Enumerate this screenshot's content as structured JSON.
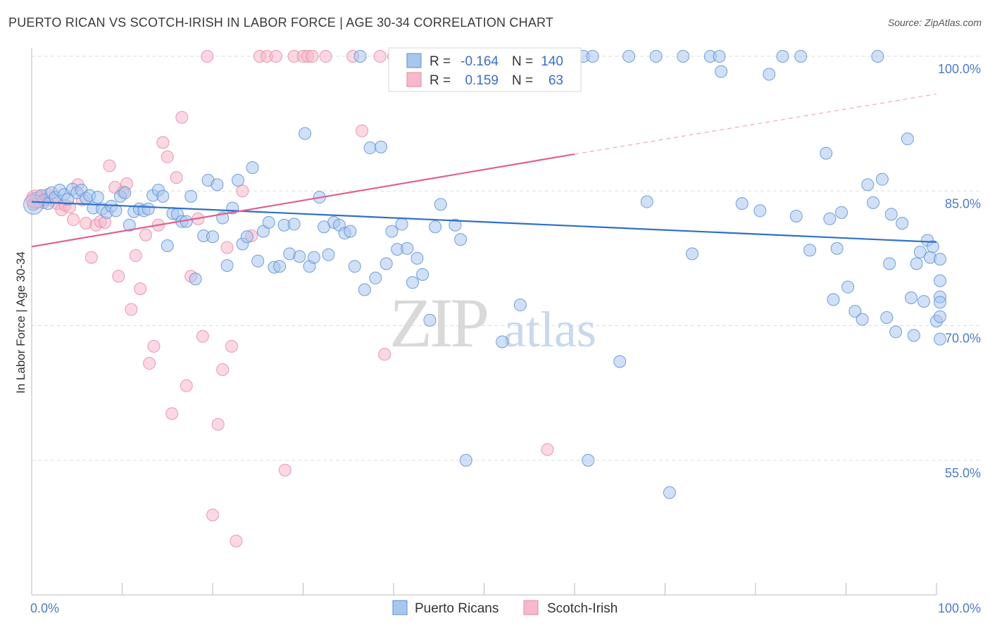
{
  "header": {
    "title": "PUERTO RICAN VS SCOTCH-IRISH IN LABOR FORCE | AGE 30-34 CORRELATION CHART",
    "source": "Source: ZipAtlas.com"
  },
  "watermark": {
    "zip": "ZIP",
    "atlas": "atlas"
  },
  "colors": {
    "blue_fill": "#a9c6ee",
    "blue_stroke": "#5b8fd6",
    "blue_line": "#2f6fca",
    "pink_fill": "#f7b8cb",
    "pink_stroke": "#e48aa6",
    "pink_line": "#e06090",
    "tick_text": "#4a7cc7",
    "grid": "#dddddd"
  },
  "legend_top": {
    "rows": [
      {
        "r_label": "R =",
        "r_value": "-0.164",
        "n_label": "N =",
        "n_value": "140"
      },
      {
        "r_label": "R =",
        "r_value": "0.159",
        "n_label": "N =",
        "n_value": "63"
      }
    ]
  },
  "chart_data": {
    "type": "scatter",
    "title": "PUERTO RICAN VS SCOTCH-IRISH IN LABOR FORCE | AGE 30-34 CORRELATION CHART",
    "xlabel": "",
    "ylabel": "In Labor Force | Age 30-34",
    "xlim": [
      0,
      100
    ],
    "ylim": [
      40,
      101.5
    ],
    "x_tick_labels": [
      "0.0%",
      "100.0%"
    ],
    "y_ticks": [
      55,
      70,
      85,
      100
    ],
    "y_tick_labels": [
      "55.0%",
      "70.0%",
      "85.0%",
      "100.0%"
    ],
    "grid": true,
    "legend_position": "bottom-center",
    "series": [
      {
        "name": "Puerto Ricans",
        "color": "#5b8fd6",
        "r": -0.164,
        "n": 140,
        "trend": {
          "x": [
            0,
            100
          ],
          "y": [
            83.8,
            79.3
          ]
        },
        "points": [
          [
            0.2,
            83.5
          ],
          [
            0.5,
            84.2
          ],
          [
            0.8,
            83.8
          ],
          [
            1.1,
            84.5
          ],
          [
            1.4,
            84.0
          ],
          [
            1.8,
            83.6
          ],
          [
            2.2,
            84.8
          ],
          [
            2.6,
            84.3
          ],
          [
            3.1,
            85.1
          ],
          [
            3.6,
            84.6
          ],
          [
            4.0,
            84.1
          ],
          [
            4.5,
            85.2
          ],
          [
            5.0,
            84.8
          ],
          [
            5.5,
            85.1
          ],
          [
            6.0,
            84.2
          ],
          [
            6.4,
            84.5
          ],
          [
            6.8,
            83.1
          ],
          [
            7.3,
            84.3
          ],
          [
            7.8,
            83.0
          ],
          [
            8.3,
            82.6
          ],
          [
            8.8,
            83.3
          ],
          [
            9.3,
            82.8
          ],
          [
            9.8,
            84.4
          ],
          [
            10.3,
            84.8
          ],
          [
            10.8,
            81.2
          ],
          [
            11.3,
            82.7
          ],
          [
            11.9,
            83.0
          ],
          [
            12.4,
            82.8
          ],
          [
            12.9,
            83.0
          ],
          [
            13.4,
            84.5
          ],
          [
            14.0,
            85.1
          ],
          [
            14.5,
            84.4
          ],
          [
            15.0,
            78.9
          ],
          [
            15.6,
            82.5
          ],
          [
            16.1,
            82.4
          ],
          [
            16.6,
            81.6
          ],
          [
            17.1,
            81.6
          ],
          [
            17.6,
            84.4
          ],
          [
            18.1,
            75.2
          ],
          [
            19.0,
            80.0
          ],
          [
            19.5,
            86.2
          ],
          [
            20.0,
            79.9
          ],
          [
            20.5,
            85.7
          ],
          [
            21.1,
            82.0
          ],
          [
            21.6,
            76.7
          ],
          [
            22.2,
            83.1
          ],
          [
            22.8,
            86.2
          ],
          [
            23.3,
            79.1
          ],
          [
            23.8,
            79.9
          ],
          [
            24.4,
            87.6
          ],
          [
            25.0,
            77.2
          ],
          [
            25.6,
            80.5
          ],
          [
            26.2,
            81.5
          ],
          [
            26.8,
            76.5
          ],
          [
            27.4,
            76.6
          ],
          [
            27.9,
            81.2
          ],
          [
            28.5,
            78.0
          ],
          [
            29.0,
            81.3
          ],
          [
            29.6,
            77.7
          ],
          [
            30.2,
            91.4
          ],
          [
            30.7,
            76.6
          ],
          [
            31.2,
            77.6
          ],
          [
            31.8,
            84.3
          ],
          [
            32.3,
            81.0
          ],
          [
            32.8,
            77.9
          ],
          [
            33.4,
            81.5
          ],
          [
            34.0,
            81.2
          ],
          [
            34.6,
            80.3
          ],
          [
            35.2,
            80.5
          ],
          [
            35.7,
            76.6
          ],
          [
            36.3,
            100.0
          ],
          [
            36.8,
            74.0
          ],
          [
            37.4,
            89.8
          ],
          [
            38.0,
            75.3
          ],
          [
            38.6,
            89.9
          ],
          [
            39.2,
            76.9
          ],
          [
            39.8,
            80.5
          ],
          [
            40.4,
            78.5
          ],
          [
            40.9,
            81.3
          ],
          [
            41.5,
            78.6
          ],
          [
            42.1,
            74.8
          ],
          [
            42.6,
            77.5
          ],
          [
            43.2,
            75.7
          ],
          [
            44.0,
            70.6
          ],
          [
            44.6,
            81.0
          ],
          [
            45.2,
            83.5
          ],
          [
            46.0,
            100.0
          ],
          [
            46.8,
            81.2
          ],
          [
            47.4,
            79.6
          ],
          [
            48.0,
            55.0
          ],
          [
            50.0,
            100.0
          ],
          [
            51.0,
            100.0
          ],
          [
            52.0,
            68.2
          ],
          [
            54.0,
            72.3
          ],
          [
            57.0,
            100.0
          ],
          [
            59.0,
            100.0
          ],
          [
            61.0,
            100.0
          ],
          [
            61.5,
            55.0
          ],
          [
            62.0,
            100.0
          ],
          [
            65.0,
            66.0
          ],
          [
            66.0,
            100.0
          ],
          [
            68.0,
            83.8
          ],
          [
            69.0,
            100.0
          ],
          [
            70.5,
            51.4
          ],
          [
            72.0,
            100.0
          ],
          [
            73.0,
            78.0
          ],
          [
            75.0,
            100.0
          ],
          [
            76.2,
            98.3
          ],
          [
            78.5,
            83.6
          ],
          [
            80.5,
            82.8
          ],
          [
            81.5,
            98.0
          ],
          [
            83.0,
            100.0
          ],
          [
            84.5,
            82.2
          ],
          [
            86.0,
            78.4
          ],
          [
            87.8,
            89.2
          ],
          [
            88.2,
            81.9
          ],
          [
            88.6,
            72.9
          ],
          [
            89.0,
            78.6
          ],
          [
            89.5,
            82.6
          ],
          [
            90.2,
            74.3
          ],
          [
            91.0,
            71.6
          ],
          [
            91.8,
            70.7
          ],
          [
            92.4,
            85.7
          ],
          [
            93.0,
            83.7
          ],
          [
            93.5,
            100.0
          ],
          [
            94.0,
            86.3
          ],
          [
            94.5,
            70.9
          ],
          [
            95.0,
            82.4
          ],
          [
            95.5,
            69.3
          ],
          [
            96.2,
            81.4
          ],
          [
            96.8,
            90.8
          ],
          [
            97.2,
            73.1
          ],
          [
            97.8,
            76.9
          ],
          [
            98.2,
            78.2
          ],
          [
            98.6,
            72.7
          ],
          [
            99.0,
            79.5
          ],
          [
            99.3,
            77.6
          ],
          [
            99.6,
            78.8
          ],
          [
            100.0,
            70.5
          ],
          [
            100.4,
            71.0
          ],
          [
            100.8,
            68.5
          ],
          [
            101.2,
            73.2
          ],
          [
            101.6,
            75.0
          ],
          [
            102.0,
            72.6
          ],
          [
            102.3,
            77.4
          ],
          [
            94.8,
            76.9
          ],
          [
            97.5,
            68.9
          ],
          [
            76.0,
            100.0
          ],
          [
            85.0,
            100.0
          ],
          [
            60.0,
            100.0
          ]
        ]
      },
      {
        "name": "Scotch-Irish",
        "color": "#e48aa6",
        "r": 0.159,
        "n": 63,
        "trend": {
          "x": [
            0,
            60
          ],
          "y": [
            78.8,
            89.1
          ]
        },
        "trend_dashed": {
          "x": [
            60,
            100
          ],
          "y": [
            89.1,
            95.8
          ]
        },
        "points": [
          [
            0.2,
            84.2
          ],
          [
            0.5,
            83.8
          ],
          [
            0.9,
            84.4
          ],
          [
            1.3,
            83.7
          ],
          [
            1.8,
            84.6
          ],
          [
            2.3,
            84.0
          ],
          [
            2.8,
            83.6
          ],
          [
            3.3,
            82.9
          ],
          [
            3.7,
            83.4
          ],
          [
            4.2,
            83.2
          ],
          [
            4.6,
            81.8
          ],
          [
            5.1,
            85.7
          ],
          [
            5.6,
            84.0
          ],
          [
            6.0,
            81.4
          ],
          [
            6.6,
            77.6
          ],
          [
            7.1,
            81.2
          ],
          [
            7.6,
            81.6
          ],
          [
            8.1,
            81.5
          ],
          [
            8.6,
            87.8
          ],
          [
            9.2,
            85.4
          ],
          [
            9.6,
            75.5
          ],
          [
            10.1,
            84.9
          ],
          [
            10.5,
            85.8
          ],
          [
            11.0,
            71.8
          ],
          [
            11.5,
            77.8
          ],
          [
            12.0,
            74.1
          ],
          [
            12.6,
            80.1
          ],
          [
            13.0,
            65.8
          ],
          [
            13.5,
            67.7
          ],
          [
            14.0,
            81.2
          ],
          [
            14.5,
            90.4
          ],
          [
            15.0,
            88.8
          ],
          [
            15.5,
            60.2
          ],
          [
            16.0,
            86.5
          ],
          [
            16.6,
            93.2
          ],
          [
            17.1,
            63.3
          ],
          [
            17.6,
            75.5
          ],
          [
            18.4,
            81.9
          ],
          [
            18.9,
            68.8
          ],
          [
            19.4,
            100.0
          ],
          [
            20.0,
            48.9
          ],
          [
            20.6,
            59.0
          ],
          [
            21.1,
            65.1
          ],
          [
            21.6,
            78.7
          ],
          [
            22.1,
            67.7
          ],
          [
            22.6,
            46.0
          ],
          [
            23.3,
            85.0
          ],
          [
            24.3,
            80.0
          ],
          [
            25.2,
            100.0
          ],
          [
            26.0,
            100.0
          ],
          [
            27.0,
            100.0
          ],
          [
            28.0,
            53.9
          ],
          [
            29.0,
            100.0
          ],
          [
            30.0,
            100.0
          ],
          [
            30.5,
            100.0
          ],
          [
            31.0,
            100.0
          ],
          [
            32.5,
            100.0
          ],
          [
            35.5,
            100.0
          ],
          [
            36.5,
            91.7
          ],
          [
            38.5,
            100.0
          ],
          [
            39.0,
            66.8
          ],
          [
            40.0,
            100.0
          ],
          [
            57.0,
            56.2
          ]
        ]
      }
    ]
  },
  "legend_bottom": {
    "items": [
      {
        "label": "Puerto Ricans"
      },
      {
        "label": "Scotch-Irish"
      }
    ]
  }
}
